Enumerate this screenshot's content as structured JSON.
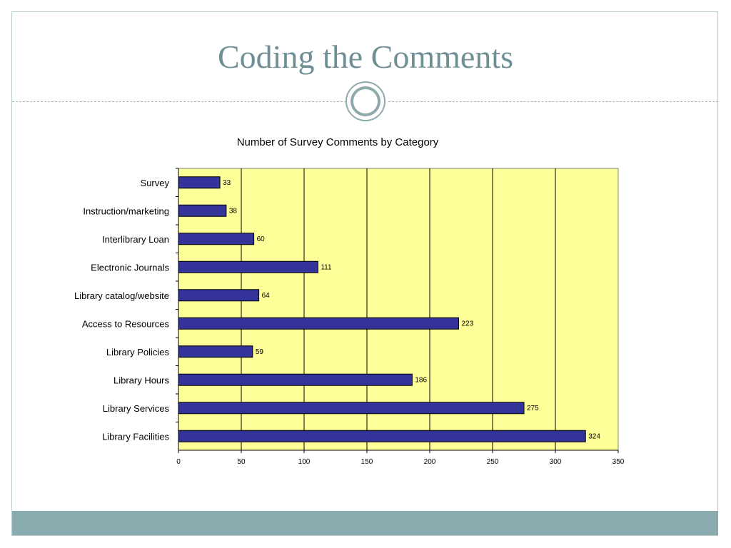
{
  "slide": {
    "title": "Coding the Comments"
  },
  "colors": {
    "title": "#6e8f96",
    "plot_background": "#ffff99",
    "bar_fill": "#333399",
    "footer": "#8aabaf"
  },
  "chart_data": {
    "type": "bar",
    "orientation": "horizontal",
    "title": "Number of Survey Comments by Category",
    "xlabel": "",
    "ylabel": "",
    "categories": [
      "Survey",
      "Instruction/marketing",
      "Interlibrary Loan",
      "Electronic Journals",
      "Library catalog/website",
      "Access to Resources",
      "Library Policies",
      "Library Hours",
      "Library Services",
      "Library Facilities"
    ],
    "values": [
      33,
      38,
      60,
      111,
      64,
      223,
      59,
      186,
      275,
      324
    ],
    "xlim": [
      0,
      350
    ],
    "xticks": [
      0,
      50,
      100,
      150,
      200,
      250,
      300,
      350
    ],
    "grid": "vertical",
    "legend": "none",
    "data_labels": true
  }
}
